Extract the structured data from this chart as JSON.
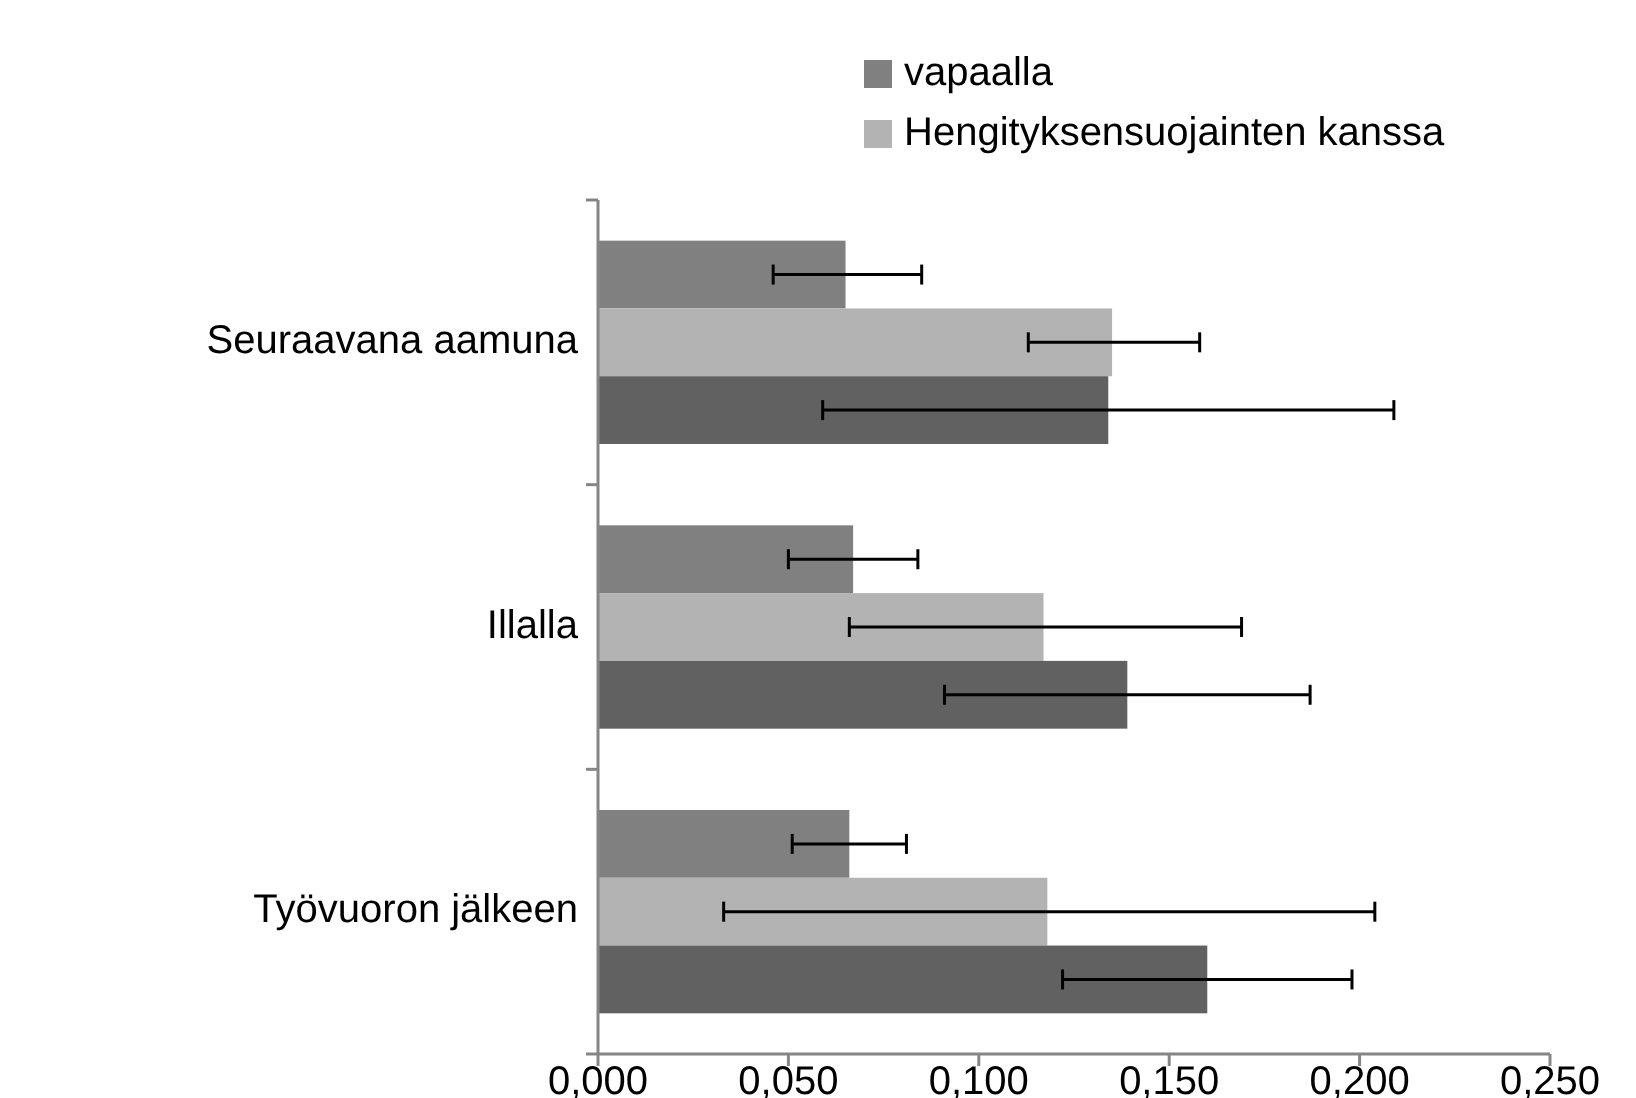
{
  "chart_data": {
    "type": "bar",
    "orientation": "horizontal",
    "categories": [
      "Seuraavana aamuna",
      "Illalla",
      "Työvuoron jälkeen"
    ],
    "series": [
      {
        "name": "vapaalla",
        "color": "#808080",
        "values": [
          0.065,
          0.067,
          0.066
        ],
        "errors": [
          [
            0.046,
            0.085
          ],
          [
            0.05,
            0.084
          ],
          [
            0.051,
            0.081
          ]
        ]
      },
      {
        "name": "Hengityksensuojainten kanssa",
        "color": "#b3b3b3",
        "values": [
          0.135,
          0.117,
          0.118
        ],
        "errors": [
          [
            0.113,
            0.158
          ],
          [
            0.066,
            0.169
          ],
          [
            0.033,
            0.204
          ]
        ]
      },
      {
        "color": "#616161",
        "values": [
          0.134,
          0.139,
          0.16
        ],
        "errors": [
          [
            0.059,
            0.209
          ],
          [
            0.091,
            0.187
          ],
          [
            0.122,
            0.198
          ]
        ]
      }
    ],
    "xlim": [
      0,
      0.25
    ],
    "xticks": [
      {
        "value": 0,
        "label": "0,000"
      },
      {
        "value": 0.05,
        "label": "0,050"
      },
      {
        "value": 0.1,
        "label": "0,100"
      },
      {
        "value": 0.15,
        "label": "0,150"
      },
      {
        "value": 0.2,
        "label": "0,200"
      },
      {
        "value": 0.25,
        "label": "0,250"
      }
    ],
    "legend": "top",
    "grid": false
  }
}
